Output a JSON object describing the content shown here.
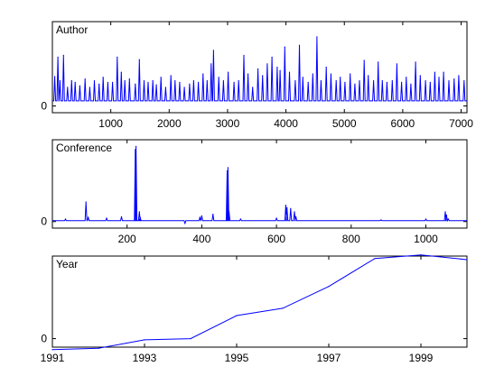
{
  "chart_data": [
    {
      "type": "line",
      "title": "Author",
      "xlim": [
        0,
        7100
      ],
      "ylim": [
        -0.08,
        1.0
      ],
      "xticks": [
        1000,
        2000,
        3000,
        4000,
        5000,
        6000,
        7000
      ],
      "yticks": [
        0
      ],
      "color": "#0000ff",
      "baseline": 0.06,
      "x": [
        40,
        95,
        130,
        190,
        260,
        330,
        390,
        470,
        560,
        640,
        720,
        800,
        870,
        950,
        1030,
        1110,
        1180,
        1240,
        1320,
        1420,
        1490,
        1570,
        1640,
        1720,
        1780,
        1860,
        1940,
        2030,
        2100,
        2180,
        2260,
        2350,
        2420,
        2500,
        2580,
        2650,
        2720,
        2760,
        2850,
        2930,
        3010,
        3110,
        3190,
        3280,
        3350,
        3430,
        3520,
        3600,
        3680,
        3760,
        3850,
        3900,
        3980,
        4060,
        4160,
        4230,
        4290,
        4380,
        4460,
        4530,
        4600,
        4690,
        4770,
        4860,
        4930,
        5010,
        5100,
        5180,
        5260,
        5340,
        5410,
        5500,
        5580,
        5650,
        5730,
        5820,
        5900,
        5980,
        6060,
        6140,
        6220,
        6300,
        6390,
        6470,
        6550,
        6620,
        6700,
        6790,
        6880,
        6960,
        7050
      ],
      "values": [
        0.35,
        0.58,
        0.3,
        0.6,
        0.22,
        0.3,
        0.28,
        0.24,
        0.32,
        0.22,
        0.3,
        0.26,
        0.34,
        0.28,
        0.28,
        0.58,
        0.4,
        0.3,
        0.32,
        0.26,
        0.55,
        0.3,
        0.28,
        0.3,
        0.25,
        0.34,
        0.22,
        0.36,
        0.3,
        0.28,
        0.22,
        0.26,
        0.3,
        0.28,
        0.38,
        0.3,
        0.5,
        0.66,
        0.34,
        0.3,
        0.4,
        0.28,
        0.3,
        0.6,
        0.38,
        0.22,
        0.44,
        0.36,
        0.5,
        0.58,
        0.46,
        0.42,
        0.7,
        0.4,
        0.3,
        0.72,
        0.34,
        0.28,
        0.38,
        0.82,
        0.3,
        0.46,
        0.38,
        0.3,
        0.34,
        0.28,
        0.38,
        0.26,
        0.3,
        0.54,
        0.36,
        0.3,
        0.52,
        0.3,
        0.28,
        0.3,
        0.5,
        0.28,
        0.34,
        0.26,
        0.52,
        0.36,
        0.3,
        0.28,
        0.4,
        0.34,
        0.4,
        0.3,
        0.32,
        0.36,
        0.3
      ]
    },
    {
      "type": "line",
      "title": "Conference",
      "xlim": [
        0,
        1110
      ],
      "ylim": [
        -0.08,
        1.0
      ],
      "xticks": [
        200,
        400,
        600,
        800,
        1000
      ],
      "yticks": [
        0
      ],
      "color": "#0000ff",
      "baseline": 0.01,
      "x": [
        35,
        90,
        96,
        145,
        185,
        222,
        224,
        233,
        235,
        355,
        395,
        400,
        430,
        468,
        470,
        473,
        504,
        600,
        625,
        628,
        638,
        648,
        652,
        880,
        1000,
        1052,
        1055,
        1060
      ],
      "values": [
        0.03,
        0.24,
        0.05,
        0.04,
        0.06,
        0.88,
        0.92,
        0.12,
        0.05,
        -0.02,
        0.05,
        0.07,
        0.09,
        0.62,
        0.66,
        0.12,
        0.03,
        0.04,
        0.2,
        0.17,
        0.16,
        0.12,
        0.06,
        0.02,
        0.03,
        0.12,
        0.08,
        0.03
      ]
    },
    {
      "type": "line",
      "title": "Year",
      "xlim": [
        1991,
        2000
      ],
      "ylim": [
        -0.07,
        0.68
      ],
      "xticks": [
        1991,
        1993,
        1995,
        1997,
        1999
      ],
      "yticks": [
        0
      ],
      "color": "#0000ff",
      "x": [
        1991,
        1992,
        1993,
        1994,
        1995,
        1996,
        1997,
        1998,
        1999,
        2000
      ],
      "values": [
        -0.09,
        -0.08,
        -0.01,
        0.0,
        0.19,
        0.25,
        0.43,
        0.66,
        0.69,
        0.65
      ]
    }
  ]
}
